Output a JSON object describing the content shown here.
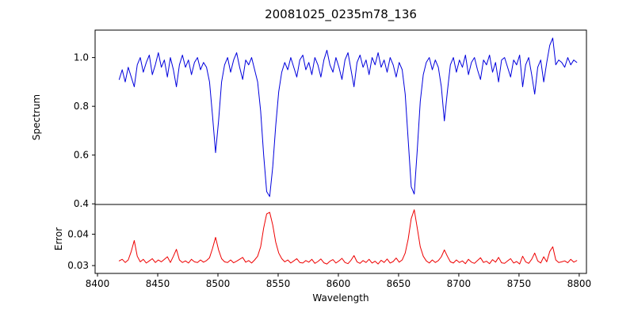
{
  "chart_data": {
    "type": "line",
    "title": "20081025_0235m78_136",
    "xlabel": "Wavelength",
    "xlim": [
      8398,
      8806
    ],
    "xticks": [
      [
        8400,
        "8400"
      ],
      [
        8450,
        "8450"
      ],
      [
        8500,
        "8500"
      ],
      [
        8550,
        "8550"
      ],
      [
        8600,
        "8600"
      ],
      [
        8650,
        "8650"
      ],
      [
        8700,
        "8700"
      ],
      [
        8750,
        "8750"
      ],
      [
        8800,
        "8800"
      ]
    ],
    "legend": "none",
    "grid": false,
    "x": [
      8418,
      8420.5,
      8423,
      8425.5,
      8428,
      8430.5,
      8433,
      8435.5,
      8438,
      8440.5,
      8443,
      8445.5,
      8448,
      8450.5,
      8453,
      8455.5,
      8458,
      8460.5,
      8463,
      8465.5,
      8468,
      8470.5,
      8473,
      8475.5,
      8478,
      8480.5,
      8483,
      8485.5,
      8488,
      8490.5,
      8493,
      8495.5,
      8498,
      8500.5,
      8503,
      8505.5,
      8508,
      8510.5,
      8513,
      8515.5,
      8518,
      8520.5,
      8523,
      8525.5,
      8528,
      8530.5,
      8533,
      8535.5,
      8538,
      8540.5,
      8543,
      8545.5,
      8548,
      8550.5,
      8553,
      8555.5,
      8558,
      8560.5,
      8563,
      8565.5,
      8568,
      8570.5,
      8573,
      8575.5,
      8578,
      8580.5,
      8583,
      8585.5,
      8588,
      8590.5,
      8593,
      8595.5,
      8598,
      8600.5,
      8603,
      8605.5,
      8608,
      8610.5,
      8613,
      8615.5,
      8618,
      8620.5,
      8623,
      8625.5,
      8628,
      8630.5,
      8633,
      8635.5,
      8638,
      8640.5,
      8643,
      8645.5,
      8648,
      8650.5,
      8653,
      8655.5,
      8658,
      8660.5,
      8663,
      8665.5,
      8668,
      8670.5,
      8673,
      8675.5,
      8678,
      8680.5,
      8683,
      8685.5,
      8688,
      8690.5,
      8693,
      8695.5,
      8698,
      8700.5,
      8703,
      8705.5,
      8708,
      8710.5,
      8713,
      8715.5,
      8718,
      8720.5,
      8723,
      8725.5,
      8728,
      8730.5,
      8733,
      8735.5,
      8738,
      8740.5,
      8743,
      8745.5,
      8748,
      8750.5,
      8753,
      8755.5,
      8758,
      8760.5,
      8763,
      8765.5,
      8768,
      8770.5,
      8773,
      8775.5,
      8778,
      8780.5,
      8783,
      8785.5,
      8788,
      8790.5,
      8793,
      8795.5,
      8798
    ],
    "panels": [
      {
        "name": "spectrum",
        "ylabel": "Spectrum",
        "color": "#0000dd",
        "ylim": [
          0.3975,
          1.1125
        ],
        "yticks": [
          [
            0.4,
            "0.4"
          ],
          [
            0.6,
            "0.6"
          ],
          [
            0.8,
            "0.8"
          ],
          [
            1.0,
            "1.0"
          ]
        ],
        "values": [
          0.91,
          0.95,
          0.9,
          0.96,
          0.92,
          0.88,
          0.97,
          1.0,
          0.94,
          0.98,
          1.01,
          0.93,
          0.97,
          1.02,
          0.96,
          0.99,
          0.92,
          1.0,
          0.95,
          0.88,
          0.97,
          1.01,
          0.96,
          0.99,
          0.93,
          0.98,
          1.0,
          0.95,
          0.98,
          0.96,
          0.9,
          0.76,
          0.61,
          0.74,
          0.9,
          0.97,
          1.0,
          0.94,
          0.99,
          1.02,
          0.96,
          0.91,
          0.99,
          0.97,
          1.0,
          0.95,
          0.9,
          0.78,
          0.6,
          0.45,
          0.43,
          0.55,
          0.72,
          0.86,
          0.94,
          0.98,
          0.95,
          1.0,
          0.96,
          0.92,
          0.99,
          1.01,
          0.95,
          0.98,
          0.93,
          1.0,
          0.97,
          0.92,
          0.99,
          1.03,
          0.97,
          0.94,
          1.0,
          0.96,
          0.91,
          0.99,
          1.02,
          0.95,
          0.88,
          0.98,
          1.01,
          0.96,
          0.99,
          0.93,
          1.0,
          0.97,
          1.02,
          0.96,
          0.99,
          0.94,
          1.0,
          0.97,
          0.92,
          0.98,
          0.95,
          0.85,
          0.66,
          0.47,
          0.44,
          0.62,
          0.82,
          0.93,
          0.98,
          1.0,
          0.95,
          0.99,
          0.96,
          0.88,
          0.74,
          0.86,
          0.97,
          1.0,
          0.94,
          0.99,
          0.96,
          1.01,
          0.93,
          0.98,
          1.0,
          0.95,
          0.91,
          0.99,
          0.97,
          1.01,
          0.94,
          0.98,
          0.9,
          0.99,
          1.0,
          0.96,
          0.92,
          0.99,
          0.97,
          1.01,
          0.88,
          0.97,
          1.0,
          0.93,
          0.85,
          0.96,
          0.99,
          0.9,
          0.98,
          1.05,
          1.08,
          0.97,
          0.99,
          0.98,
          0.96,
          1.0,
          0.97,
          0.99,
          0.98
        ]
      },
      {
        "name": "error",
        "ylabel": "Error",
        "color": "#ee0000",
        "ylim": [
          0.0275,
          0.0495
        ],
        "yticks": [
          [
            0.03,
            "0.03"
          ],
          [
            0.04,
            "0.04"
          ]
        ],
        "values": [
          0.0315,
          0.032,
          0.031,
          0.0318,
          0.0345,
          0.038,
          0.033,
          0.0312,
          0.032,
          0.0308,
          0.0315,
          0.0322,
          0.031,
          0.0318,
          0.0312,
          0.032,
          0.0328,
          0.031,
          0.033,
          0.0352,
          0.0318,
          0.031,
          0.0315,
          0.0308,
          0.032,
          0.0312,
          0.031,
          0.0318,
          0.0311,
          0.0316,
          0.0325,
          0.0355,
          0.039,
          0.035,
          0.0322,
          0.0312,
          0.031,
          0.0318,
          0.0309,
          0.0314,
          0.032,
          0.0326,
          0.0311,
          0.0316,
          0.0308,
          0.0318,
          0.033,
          0.036,
          0.042,
          0.0465,
          0.047,
          0.043,
          0.0375,
          0.034,
          0.0322,
          0.0312,
          0.0318,
          0.0308,
          0.0315,
          0.0322,
          0.031,
          0.0308,
          0.0316,
          0.0311,
          0.032,
          0.0307,
          0.0313,
          0.0321,
          0.0309,
          0.0305,
          0.0314,
          0.0319,
          0.0308,
          0.0315,
          0.0323,
          0.031,
          0.0306,
          0.0317,
          0.0332,
          0.0312,
          0.0307,
          0.0316,
          0.031,
          0.032,
          0.0308,
          0.0314,
          0.0305,
          0.0317,
          0.031,
          0.0321,
          0.0308,
          0.0313,
          0.0324,
          0.0311,
          0.0318,
          0.034,
          0.0385,
          0.045,
          0.0478,
          0.042,
          0.036,
          0.033,
          0.0315,
          0.0308,
          0.0318,
          0.031,
          0.0316,
          0.0328,
          0.035,
          0.033,
          0.0312,
          0.0308,
          0.0318,
          0.031,
          0.0315,
          0.0306,
          0.032,
          0.0311,
          0.0307,
          0.0316,
          0.0325,
          0.031,
          0.0314,
          0.0306,
          0.0319,
          0.0311,
          0.0326,
          0.0309,
          0.0307,
          0.0315,
          0.0322,
          0.0308,
          0.0313,
          0.0305,
          0.033,
          0.0312,
          0.0307,
          0.032,
          0.034,
          0.0315,
          0.0308,
          0.0328,
          0.0312,
          0.0345,
          0.036,
          0.0318,
          0.031,
          0.0312,
          0.0315,
          0.0309,
          0.032,
          0.0311,
          0.0316
        ]
      }
    ]
  }
}
